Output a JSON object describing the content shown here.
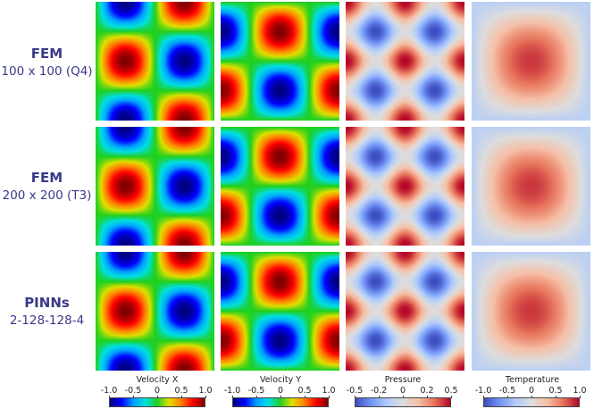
{
  "rows": [
    {
      "method": "FEM",
      "mesh": "100 x 100 (Q4)"
    },
    {
      "method": "FEM",
      "mesh": "200 x 200 (T3)"
    },
    {
      "method": "PINNs",
      "mesh": "2-128-128-4"
    }
  ],
  "fields": [
    {
      "key": "vx",
      "colorbar": {
        "title": "Velocity X",
        "ticks": [
          "-1.0",
          "-0.5",
          "0",
          "0.5",
          "1.0"
        ],
        "range": [
          -1,
          1
        ],
        "colormap": "jet"
      }
    },
    {
      "key": "vy",
      "colorbar": {
        "title": "Velocity Y",
        "ticks": [
          "-1.0",
          "-0.5",
          "0",
          "0.5",
          "1.0"
        ],
        "range": [
          -1,
          1
        ],
        "colormap": "jet"
      }
    },
    {
      "key": "p",
      "colorbar": {
        "title": "Pressure",
        "ticks": [
          "-0.5",
          "-0.2",
          "0",
          "0.2",
          "0.5"
        ],
        "range": [
          -0.5,
          0.5
        ],
        "colormap": "coolwarm"
      }
    },
    {
      "key": "t",
      "colorbar": {
        "title": "Temperature",
        "ticks": [
          "-1.0",
          "-0.5",
          "0",
          "0.5",
          "1.0"
        ],
        "range": [
          -1,
          1
        ],
        "colormap": "coolwarm"
      }
    }
  ],
  "colors": {
    "label_text": "#3a3a8a",
    "jet": [
      "#00007f",
      "#0000ff",
      "#00a0ff",
      "#00e0e0",
      "#20d020",
      "#e0e000",
      "#ff8000",
      "#ff0000",
      "#7f0000"
    ],
    "coolwarm": [
      "#3b4cc0",
      "#7396f5",
      "#b0cbfc",
      "#dddddd",
      "#f6bfa6",
      "#e7745b",
      "#b40426"
    ]
  }
}
